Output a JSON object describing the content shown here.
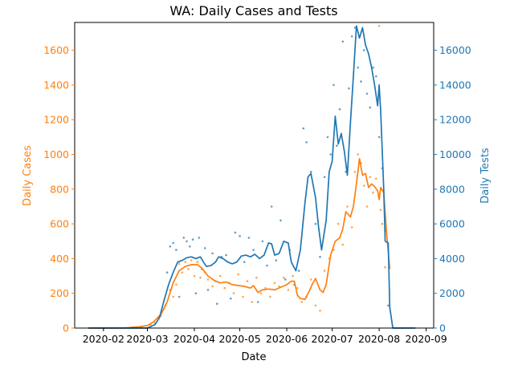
{
  "chart_data": {
    "type": "line",
    "title": "WA: Daily Cases and Tests",
    "xlabel": "Date",
    "ylabel_left": "Daily Cases",
    "ylabel_right": "Daily Tests",
    "x_ticks": [
      "2020-02",
      "2020-03",
      "2020-04",
      "2020-05",
      "2020-06",
      "2020-07",
      "2020-08",
      "2020-09"
    ],
    "y_left_ticks": [
      "0",
      "200",
      "400",
      "600",
      "800",
      "1000",
      "1200",
      "1400",
      "1600"
    ],
    "y_right_ticks": [
      "0",
      "2000",
      "4000",
      "6000",
      "8000",
      "10000",
      "12000",
      "14000",
      "16000"
    ],
    "xlim": [
      "2020-01-13",
      "2020-09-06"
    ],
    "ylim_left": [
      0,
      1760
    ],
    "ylim_right": [
      0,
      17600
    ],
    "grid": false,
    "colors": {
      "cases": "#ff7f0e",
      "tests": "#1f77b4",
      "axis": "#000000"
    },
    "series": [
      {
        "axis": "left",
        "color": "#ff7f0e",
        "line": [
          [
            "2020-01-22",
            0
          ],
          [
            "2020-02-15",
            0
          ],
          [
            "2020-02-25",
            8
          ],
          [
            "2020-03-01",
            15
          ],
          [
            "2020-03-05",
            35
          ],
          [
            "2020-03-10",
            80
          ],
          [
            "2020-03-14",
            150
          ],
          [
            "2020-03-18",
            260
          ],
          [
            "2020-03-22",
            330
          ],
          [
            "2020-03-26",
            355
          ],
          [
            "2020-03-30",
            365
          ],
          [
            "2020-04-03",
            365
          ],
          [
            "2020-04-06",
            345
          ],
          [
            "2020-04-10",
            300
          ],
          [
            "2020-04-14",
            275
          ],
          [
            "2020-04-18",
            260
          ],
          [
            "2020-04-22",
            265
          ],
          [
            "2020-04-26",
            250
          ],
          [
            "2020-04-30",
            245
          ],
          [
            "2020-05-04",
            240
          ],
          [
            "2020-05-08",
            230
          ],
          [
            "2020-05-10",
            245
          ],
          [
            "2020-05-13",
            205
          ],
          [
            "2020-05-16",
            220
          ],
          [
            "2020-05-20",
            225
          ],
          [
            "2020-05-24",
            220
          ],
          [
            "2020-05-28",
            235
          ],
          [
            "2020-06-01",
            250
          ],
          [
            "2020-06-04",
            270
          ],
          [
            "2020-06-06",
            270
          ],
          [
            "2020-06-08",
            190
          ],
          [
            "2020-06-10",
            170
          ],
          [
            "2020-06-13",
            165
          ],
          [
            "2020-06-16",
            215
          ],
          [
            "2020-06-18",
            255
          ],
          [
            "2020-06-20",
            285
          ],
          [
            "2020-06-23",
            220
          ],
          [
            "2020-06-25",
            205
          ],
          [
            "2020-06-27",
            250
          ],
          [
            "2020-06-30",
            420
          ],
          [
            "2020-07-03",
            500
          ],
          [
            "2020-07-06",
            520
          ],
          [
            "2020-07-08",
            570
          ],
          [
            "2020-07-10",
            670
          ],
          [
            "2020-07-13",
            640
          ],
          [
            "2020-07-15",
            700
          ],
          [
            "2020-07-17",
            830
          ],
          [
            "2020-07-19",
            975
          ],
          [
            "2020-07-21",
            880
          ],
          [
            "2020-07-23",
            890
          ],
          [
            "2020-07-25",
            810
          ],
          [
            "2020-07-27",
            830
          ],
          [
            "2020-07-29",
            815
          ],
          [
            "2020-07-31",
            790
          ],
          [
            "2020-08-01",
            740
          ],
          [
            "2020-08-02",
            810
          ],
          [
            "2020-08-04",
            780
          ],
          [
            "2020-08-06",
            540
          ],
          [
            "2020-08-08",
            340
          ]
        ],
        "points": [
          [
            "2020-02-20",
            4
          ],
          [
            "2020-02-26",
            8
          ],
          [
            "2020-03-03",
            20
          ],
          [
            "2020-03-06",
            30
          ],
          [
            "2020-03-08",
            60
          ],
          [
            "2020-03-10",
            70
          ],
          [
            "2020-03-12",
            110
          ],
          [
            "2020-03-13",
            130
          ],
          [
            "2020-03-16",
            220
          ],
          [
            "2020-03-18",
            180
          ],
          [
            "2020-03-20",
            250
          ],
          [
            "2020-03-22",
            370
          ],
          [
            "2020-03-24",
            320
          ],
          [
            "2020-03-26",
            380
          ],
          [
            "2020-03-28",
            340
          ],
          [
            "2020-03-30",
            390
          ],
          [
            "2020-04-01",
            300
          ],
          [
            "2020-04-03",
            380
          ],
          [
            "2020-04-05",
            290
          ],
          [
            "2020-04-08",
            320
          ],
          [
            "2020-04-10",
            280
          ],
          [
            "2020-04-13",
            240
          ],
          [
            "2020-04-15",
            270
          ],
          [
            "2020-04-18",
            300
          ],
          [
            "2020-04-21",
            230
          ],
          [
            "2020-04-24",
            260
          ],
          [
            "2020-04-27",
            200
          ],
          [
            "2020-04-30",
            310
          ],
          [
            "2020-05-03",
            180
          ],
          [
            "2020-05-06",
            270
          ],
          [
            "2020-05-09",
            150
          ],
          [
            "2020-05-12",
            290
          ],
          [
            "2020-05-15",
            200
          ],
          [
            "2020-05-18",
            230
          ],
          [
            "2020-05-21",
            180
          ],
          [
            "2020-05-24",
            260
          ],
          [
            "2020-05-27",
            240
          ],
          [
            "2020-05-30",
            290
          ],
          [
            "2020-06-02",
            220
          ],
          [
            "2020-06-05",
            300
          ],
          [
            "2020-06-08",
            230
          ],
          [
            "2020-06-11",
            150
          ],
          [
            "2020-06-14",
            180
          ],
          [
            "2020-06-17",
            280
          ],
          [
            "2020-06-20",
            130
          ],
          [
            "2020-06-23",
            100
          ],
          [
            "2020-06-26",
            330
          ],
          [
            "2020-06-29",
            400
          ],
          [
            "2020-07-02",
            450
          ],
          [
            "2020-07-05",
            600
          ],
          [
            "2020-07-08",
            480
          ],
          [
            "2020-07-11",
            700
          ],
          [
            "2020-07-14",
            580
          ],
          [
            "2020-07-16",
            900
          ],
          [
            "2020-07-18",
            1000
          ],
          [
            "2020-07-20",
            950
          ],
          [
            "2020-07-22",
            820
          ],
          [
            "2020-07-24",
            700
          ],
          [
            "2020-07-26",
            870
          ],
          [
            "2020-07-28",
            780
          ],
          [
            "2020-07-30",
            860
          ],
          [
            "2020-08-01",
            1740
          ],
          [
            "2020-08-02",
            680
          ],
          [
            "2020-08-03",
            600
          ],
          [
            "2020-08-05",
            350
          ]
        ]
      },
      {
        "axis": "right",
        "color": "#1f77b4",
        "line": [
          [
            "2020-01-22",
            0
          ],
          [
            "2020-02-15",
            0
          ],
          [
            "2020-03-01",
            0
          ],
          [
            "2020-03-06",
            200
          ],
          [
            "2020-03-09",
            600
          ],
          [
            "2020-03-12",
            1600
          ],
          [
            "2020-03-15",
            2500
          ],
          [
            "2020-03-18",
            3200
          ],
          [
            "2020-03-21",
            3800
          ],
          [
            "2020-03-24",
            3900
          ],
          [
            "2020-03-27",
            4050
          ],
          [
            "2020-03-30",
            4100
          ],
          [
            "2020-04-02",
            4000
          ],
          [
            "2020-04-05",
            4100
          ],
          [
            "2020-04-07",
            3800
          ],
          [
            "2020-04-09",
            3550
          ],
          [
            "2020-04-12",
            3600
          ],
          [
            "2020-04-15",
            3800
          ],
          [
            "2020-04-17",
            4100
          ],
          [
            "2020-04-20",
            4000
          ],
          [
            "2020-04-23",
            3800
          ],
          [
            "2020-04-26",
            3700
          ],
          [
            "2020-04-29",
            3800
          ],
          [
            "2020-05-02",
            4150
          ],
          [
            "2020-05-05",
            4200
          ],
          [
            "2020-05-08",
            4100
          ],
          [
            "2020-05-11",
            4250
          ],
          [
            "2020-05-14",
            4000
          ],
          [
            "2020-05-17",
            4200
          ],
          [
            "2020-05-20",
            4900
          ],
          [
            "2020-05-22",
            4850
          ],
          [
            "2020-05-24",
            4200
          ],
          [
            "2020-05-27",
            4300
          ],
          [
            "2020-05-30",
            5000
          ],
          [
            "2020-06-02",
            4900
          ],
          [
            "2020-06-04",
            3800
          ],
          [
            "2020-06-07",
            3300
          ],
          [
            "2020-06-10",
            4500
          ],
          [
            "2020-06-13",
            7200
          ],
          [
            "2020-06-15",
            8700
          ],
          [
            "2020-06-17",
            8900
          ],
          [
            "2020-06-20",
            7500
          ],
          [
            "2020-06-22",
            5800
          ],
          [
            "2020-06-24",
            4500
          ],
          [
            "2020-06-27",
            6200
          ],
          [
            "2020-06-29",
            9000
          ],
          [
            "2020-07-01",
            9600
          ],
          [
            "2020-07-03",
            12200
          ],
          [
            "2020-07-05",
            10600
          ],
          [
            "2020-07-07",
            11200
          ],
          [
            "2020-07-09",
            10200
          ],
          [
            "2020-07-11",
            8800
          ],
          [
            "2020-07-13",
            11800
          ],
          [
            "2020-07-15",
            14500
          ],
          [
            "2020-07-17",
            17400
          ],
          [
            "2020-07-19",
            16700
          ],
          [
            "2020-07-21",
            17300
          ],
          [
            "2020-07-23",
            16300
          ],
          [
            "2020-07-25",
            15800
          ],
          [
            "2020-07-27",
            15000
          ],
          [
            "2020-07-29",
            14000
          ],
          [
            "2020-07-31",
            12800
          ],
          [
            "2020-08-01",
            14000
          ],
          [
            "2020-08-02",
            12500
          ],
          [
            "2020-08-04",
            8000
          ],
          [
            "2020-08-05",
            5000
          ],
          [
            "2020-08-07",
            4900
          ],
          [
            "2020-08-08",
            1200
          ],
          [
            "2020-08-10",
            0
          ],
          [
            "2020-08-25",
            0
          ]
        ],
        "points": [
          [
            "2020-03-14",
            3200
          ],
          [
            "2020-03-16",
            4700
          ],
          [
            "2020-03-18",
            4900
          ],
          [
            "2020-03-20",
            4500
          ],
          [
            "2020-03-22",
            1800
          ],
          [
            "2020-03-25",
            5200
          ],
          [
            "2020-03-27",
            5000
          ],
          [
            "2020-03-29",
            4700
          ],
          [
            "2020-03-31",
            5100
          ],
          [
            "2020-04-02",
            2000
          ],
          [
            "2020-04-04",
            5200
          ],
          [
            "2020-04-06",
            3400
          ],
          [
            "2020-04-08",
            4600
          ],
          [
            "2020-04-10",
            2200
          ],
          [
            "2020-04-13",
            4300
          ],
          [
            "2020-04-16",
            1400
          ],
          [
            "2020-04-19",
            4100
          ],
          [
            "2020-04-22",
            4200
          ],
          [
            "2020-04-25",
            1700
          ],
          [
            "2020-04-28",
            5500
          ],
          [
            "2020-05-01",
            5300
          ],
          [
            "2020-05-04",
            3800
          ],
          [
            "2020-05-07",
            5200
          ],
          [
            "2020-05-10",
            4500
          ],
          [
            "2020-05-13",
            1500
          ],
          [
            "2020-05-16",
            5000
          ],
          [
            "2020-05-19",
            3600
          ],
          [
            "2020-05-22",
            7000
          ],
          [
            "2020-05-25",
            3900
          ],
          [
            "2020-05-28",
            6200
          ],
          [
            "2020-05-31",
            2800
          ],
          [
            "2020-06-03",
            4500
          ],
          [
            "2020-06-06",
            2500
          ],
          [
            "2020-06-09",
            3300
          ],
          [
            "2020-06-12",
            11500
          ],
          [
            "2020-06-14",
            10700
          ],
          [
            "2020-06-17",
            9000
          ],
          [
            "2020-06-20",
            6000
          ],
          [
            "2020-06-23",
            4100
          ],
          [
            "2020-06-26",
            8700
          ],
          [
            "2020-06-28",
            11000
          ],
          [
            "2020-06-30",
            10000
          ],
          [
            "2020-07-02",
            14000
          ],
          [
            "2020-07-04",
            10500
          ],
          [
            "2020-07-06",
            12600
          ],
          [
            "2020-07-08",
            16500
          ],
          [
            "2020-07-10",
            9000
          ],
          [
            "2020-07-12",
            13800
          ],
          [
            "2020-07-14",
            16800
          ],
          [
            "2020-07-16",
            17300
          ],
          [
            "2020-07-18",
            15000
          ],
          [
            "2020-07-20",
            14200
          ],
          [
            "2020-07-22",
            16000
          ],
          [
            "2020-07-24",
            13500
          ],
          [
            "2020-07-26",
            12700
          ],
          [
            "2020-07-28",
            15000
          ],
          [
            "2020-07-30",
            14500
          ],
          [
            "2020-08-01",
            11000
          ],
          [
            "2020-08-03",
            9200
          ],
          [
            "2020-08-05",
            5600
          ],
          [
            "2020-08-07",
            1300
          ]
        ]
      }
    ]
  }
}
